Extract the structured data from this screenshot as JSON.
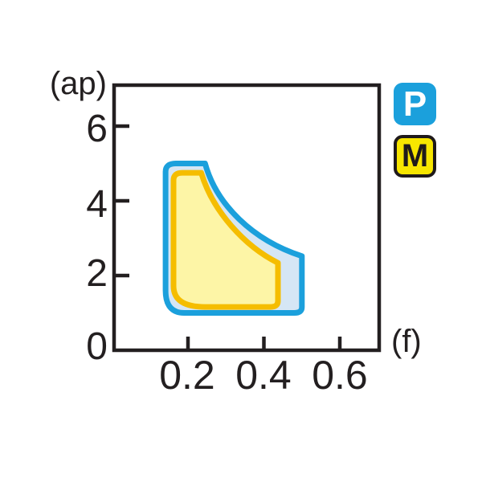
{
  "page": {
    "background": "#ffffff",
    "description": "Cutting insert application range chart: depth of cut (ap) versus feed (f) with P and M workpiece-material ranges"
  },
  "chart_data": {
    "type": "area",
    "title": "",
    "xlabel": "(f)",
    "ylabel": "(ap)",
    "xlim": [
      0,
      0.7
    ],
    "ylim": [
      0,
      7.1
    ],
    "grid": false,
    "axis_color": "#231f20",
    "x_ticks": {
      "values": [
        0.2,
        0.4,
        0.6
      ],
      "labels": [
        "0.2",
        "0.4",
        "0.6"
      ]
    },
    "y_ticks": {
      "values": [
        6,
        4,
        2
      ],
      "labels": [
        "6",
        "4",
        "2",
        "0"
      ],
      "label_values": [
        6,
        4,
        2,
        0
      ]
    },
    "regions": [
      {
        "grade": "P",
        "name": "P-application-range",
        "fill": "#d5e6f5",
        "stroke": "#1ba0dc",
        "stroke_width": 7,
        "extent": {
          "f": [
            0.14,
            0.5
          ],
          "ap": [
            1.0,
            5.0
          ]
        },
        "path": [
          [
            "M",
            0.141,
            4.78
          ],
          [
            "Q",
            0.141,
            5.0,
            0.168,
            5.0
          ],
          [
            "L",
            0.245,
            5.0
          ],
          [
            "C",
            0.275,
            3.9,
            0.37,
            2.95,
            0.5,
            2.52
          ],
          [
            "L",
            0.5,
            1.15
          ],
          [
            "Q",
            0.5,
            1.0,
            0.48,
            1.0
          ],
          [
            "L",
            0.19,
            1.0
          ],
          [
            "Q",
            0.141,
            1.0,
            0.141,
            1.6
          ],
          [
            "Z"
          ]
        ]
      },
      {
        "grade": "M",
        "name": "M-application-range",
        "fill": "#fdf5a6",
        "stroke": "#f5bd00",
        "stroke_width": 7,
        "extent": {
          "f": [
            0.16,
            0.44
          ],
          "ap": [
            1.16,
            4.75
          ]
        },
        "path": [
          [
            "M",
            0.162,
            4.55
          ],
          [
            "Q",
            0.162,
            4.75,
            0.185,
            4.75
          ],
          [
            "L",
            0.235,
            4.75
          ],
          [
            "C",
            0.265,
            3.72,
            0.35,
            2.78,
            0.437,
            2.34
          ],
          [
            "L",
            0.437,
            1.32
          ],
          [
            "Q",
            0.437,
            1.16,
            0.418,
            1.16
          ],
          [
            "L",
            0.245,
            1.16
          ],
          [
            "Q",
            0.162,
            1.16,
            0.162,
            1.72
          ],
          [
            "Z"
          ]
        ]
      }
    ],
    "legend": [
      {
        "label": "P",
        "bg": "#1ba0dc",
        "fg": "#ffffff",
        "border": ""
      },
      {
        "label": "M",
        "bg": "#f7e600",
        "fg": "#1f1a1b",
        "border": "#1f1a1b"
      }
    ]
  }
}
